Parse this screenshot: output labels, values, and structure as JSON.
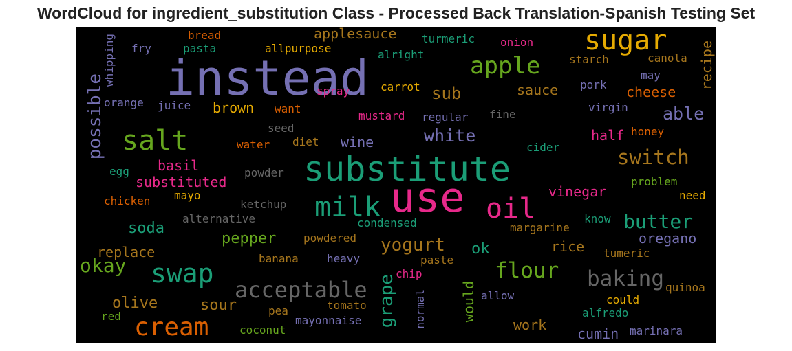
{
  "title": "WordCloud for ingredient_substitution Class - Processed Back Translation-Spanish Testing Set",
  "colors": {
    "background": "#000000",
    "palette": [
      "#1b9e77",
      "#d95f02",
      "#7570b3",
      "#e7298a",
      "#66a61e",
      "#e6ab02",
      "#a6761d",
      "#666666"
    ]
  },
  "words": [
    {
      "text": "instead",
      "color": "#7570b3"
    },
    {
      "text": "sugar",
      "color": "#e6ab02"
    },
    {
      "text": "apple",
      "color": "#66a61e"
    },
    {
      "text": "salt",
      "color": "#66a61e"
    },
    {
      "text": "substitute",
      "color": "#1b9e77"
    },
    {
      "text": "use",
      "color": "#e7298a"
    },
    {
      "text": "milk",
      "color": "#1b9e77"
    },
    {
      "text": "oil",
      "color": "#e7298a"
    },
    {
      "text": "swap",
      "color": "#1b9e77"
    },
    {
      "text": "cream",
      "color": "#d95f02"
    },
    {
      "text": "acceptable",
      "color": "#666666"
    },
    {
      "text": "baking",
      "color": "#666666"
    },
    {
      "text": "flour",
      "color": "#66a61e"
    },
    {
      "text": "switch",
      "color": "#a6761d"
    },
    {
      "text": "butter",
      "color": "#1b9e77"
    },
    {
      "text": "okay",
      "color": "#66a61e"
    },
    {
      "text": "yogurt",
      "color": "#a6761d"
    },
    {
      "text": "grape",
      "color": "#1b9e77"
    },
    {
      "text": "possible",
      "color": "#7570b3"
    },
    {
      "text": "able",
      "color": "#7570b3"
    },
    {
      "text": "white",
      "color": "#7570b3"
    },
    {
      "text": "sub",
      "color": "#a6761d"
    },
    {
      "text": "pepper",
      "color": "#66a61e"
    },
    {
      "text": "soda",
      "color": "#1b9e77"
    },
    {
      "text": "olive",
      "color": "#a6761d"
    },
    {
      "text": "sour",
      "color": "#a6761d"
    },
    {
      "text": "applesauce",
      "color": "#a6761d"
    },
    {
      "text": "cheese",
      "color": "#d95f02"
    },
    {
      "text": "sauce",
      "color": "#a6761d"
    },
    {
      "text": "recipe",
      "color": "#a6761d"
    },
    {
      "text": "vinegar",
      "color": "#e7298a"
    },
    {
      "text": "oregano",
      "color": "#7570b3"
    },
    {
      "text": "rice",
      "color": "#a6761d"
    },
    {
      "text": "ok",
      "color": "#1b9e77"
    },
    {
      "text": "would",
      "color": "#66a61e"
    },
    {
      "text": "work",
      "color": "#a6761d"
    },
    {
      "text": "cumin",
      "color": "#7570b3"
    },
    {
      "text": "brown",
      "color": "#e6ab02"
    },
    {
      "text": "basil",
      "color": "#e7298a"
    },
    {
      "text": "substituted",
      "color": "#e7298a"
    },
    {
      "text": "replace",
      "color": "#a6761d"
    },
    {
      "text": "half",
      "color": "#e7298a"
    },
    {
      "text": "wine",
      "color": "#7570b3"
    },
    {
      "text": "bread",
      "color": "#d95f02"
    },
    {
      "text": "pasta",
      "color": "#1b9e77"
    },
    {
      "text": "fry",
      "color": "#7570b3"
    },
    {
      "text": "whipping",
      "color": "#7570b3"
    },
    {
      "text": "allpurpose",
      "color": "#e6ab02"
    },
    {
      "text": "alright",
      "color": "#1b9e77"
    },
    {
      "text": "turmeric",
      "color": "#1b9e77"
    },
    {
      "text": "onion",
      "color": "#e7298a"
    },
    {
      "text": "starch",
      "color": "#a6761d"
    },
    {
      "text": "canola",
      "color": "#a6761d"
    },
    {
      "text": "may",
      "color": "#7570b3"
    },
    {
      "text": "pork",
      "color": "#7570b3"
    },
    {
      "text": "carrot",
      "color": "#e6ab02"
    },
    {
      "text": "spray",
      "color": "#e7298a"
    },
    {
      "text": "orange",
      "color": "#7570b3"
    },
    {
      "text": "juice",
      "color": "#7570b3"
    },
    {
      "text": "want",
      "color": "#d95f02"
    },
    {
      "text": "mustard",
      "color": "#e7298a"
    },
    {
      "text": "regular",
      "color": "#7570b3"
    },
    {
      "text": "fine",
      "color": "#666666"
    },
    {
      "text": "virgin",
      "color": "#7570b3"
    },
    {
      "text": "honey",
      "color": "#d95f02"
    },
    {
      "text": "seed",
      "color": "#666666"
    },
    {
      "text": "water",
      "color": "#d95f02"
    },
    {
      "text": "diet",
      "color": "#a6761d"
    },
    {
      "text": "cider",
      "color": "#1b9e77"
    },
    {
      "text": "egg",
      "color": "#1b9e77"
    },
    {
      "text": "powder",
      "color": "#666666"
    },
    {
      "text": "problem",
      "color": "#66a61e"
    },
    {
      "text": "chicken",
      "color": "#d95f02"
    },
    {
      "text": "mayo",
      "color": "#e6ab02"
    },
    {
      "text": "ketchup",
      "color": "#666666"
    },
    {
      "text": "need",
      "color": "#e6ab02"
    },
    {
      "text": "alternative",
      "color": "#666666"
    },
    {
      "text": "condensed",
      "color": "#1b9e77"
    },
    {
      "text": "know",
      "color": "#1b9e77"
    },
    {
      "text": "margarine",
      "color": "#a6761d"
    },
    {
      "text": "powdered",
      "color": "#a6761d"
    },
    {
      "text": "tumeric",
      "color": "#a6761d"
    },
    {
      "text": "banana",
      "color": "#a6761d"
    },
    {
      "text": "heavy",
      "color": "#7570b3"
    },
    {
      "text": "paste",
      "color": "#a6761d"
    },
    {
      "text": "chip",
      "color": "#e7298a"
    },
    {
      "text": "quinoa",
      "color": "#a6761d"
    },
    {
      "text": "allow",
      "color": "#7570b3"
    },
    {
      "text": "could",
      "color": "#e6ab02"
    },
    {
      "text": "tomato",
      "color": "#a6761d"
    },
    {
      "text": "normal",
      "color": "#7570b3"
    },
    {
      "text": "red",
      "color": "#66a61e"
    },
    {
      "text": "pea",
      "color": "#a6761d"
    },
    {
      "text": "alfredo",
      "color": "#1b9e77"
    },
    {
      "text": "mayonnaise",
      "color": "#7570b3"
    },
    {
      "text": "coconut",
      "color": "#66a61e"
    },
    {
      "text": "marinara",
      "color": "#7570b3"
    }
  ]
}
